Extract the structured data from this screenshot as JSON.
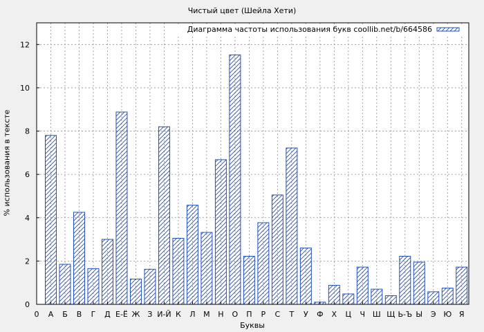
{
  "chart_data": {
    "type": "bar",
    "title": "Чистый цвет (Шейла Хети)",
    "xlabel": "Буквы",
    "ylabel": "% использования в тексте",
    "legend": {
      "position": "top-right",
      "label": "Диаграмма частоты использования букв coollib.net/b/664586"
    },
    "grid": true,
    "ylim": [
      0,
      13
    ],
    "yticks": [
      0,
      2,
      4,
      6,
      8,
      10,
      12
    ],
    "x_zero_label": "0",
    "categories": [
      "А",
      "Б",
      "В",
      "Г",
      "Д",
      "Е-Ё",
      "Ж",
      "З",
      "И-Й",
      "К",
      "Л",
      "М",
      "Н",
      "О",
      "П",
      "Р",
      "С",
      "Т",
      "У",
      "Ф",
      "Х",
      "Ц",
      "Ч",
      "Ш",
      "Щ",
      "Ь-Ъ",
      "Ы",
      "Э",
      "Ю",
      "Я"
    ],
    "values": [
      7.8,
      1.85,
      4.25,
      1.65,
      3.0,
      8.88,
      1.17,
      1.62,
      8.2,
      3.05,
      4.58,
      3.32,
      6.68,
      11.52,
      2.22,
      3.77,
      5.05,
      7.22,
      2.6,
      0.1,
      0.88,
      0.48,
      1.72,
      0.7,
      0.4,
      2.22,
      1.95,
      0.58,
      0.75,
      1.72
    ],
    "colors": {
      "bar": "#1f4fbf",
      "grid": "#8c8c8c",
      "background": "#f0f0f0",
      "plot": "#ffffff"
    }
  }
}
